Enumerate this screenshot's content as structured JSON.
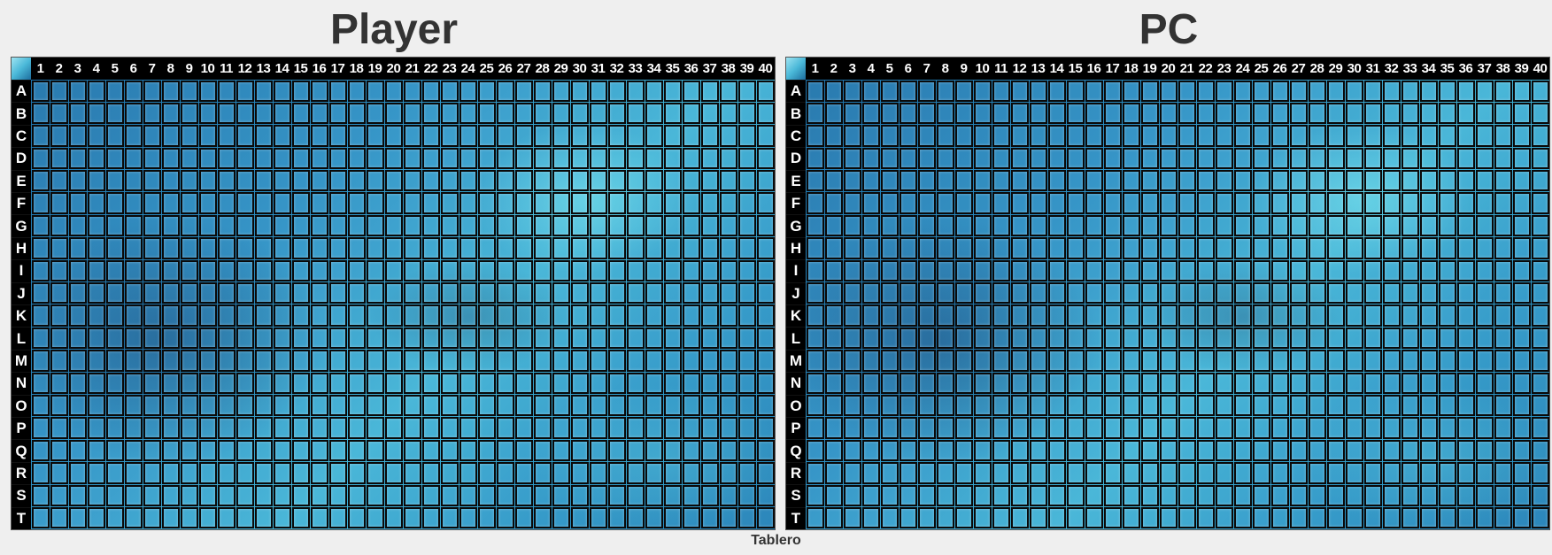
{
  "boards": [
    {
      "title": "Player",
      "id": "player"
    },
    {
      "title": "PC",
      "id": "pc"
    }
  ],
  "columns": [
    "1",
    "2",
    "3",
    "4",
    "5",
    "6",
    "7",
    "8",
    "9",
    "10",
    "11",
    "12",
    "13",
    "14",
    "15",
    "16",
    "17",
    "18",
    "19",
    "20",
    "21",
    "22",
    "23",
    "24",
    "25",
    "26",
    "27",
    "28",
    "29",
    "30",
    "31",
    "32",
    "33",
    "34",
    "35",
    "36",
    "37",
    "38",
    "39",
    "40"
  ],
  "rows": [
    "A",
    "B",
    "C",
    "D",
    "E",
    "F",
    "G",
    "H",
    "I",
    "J",
    "K",
    "L",
    "M",
    "N",
    "O",
    "P",
    "Q",
    "R",
    "S",
    "T"
  ],
  "status_label": "Tablero",
  "colors": {
    "water_dark": "#1b6fa8",
    "water_light": "#3fb3d6",
    "header_bg": "#000000",
    "header_text": "#ffffff",
    "title_text": "#333333"
  }
}
